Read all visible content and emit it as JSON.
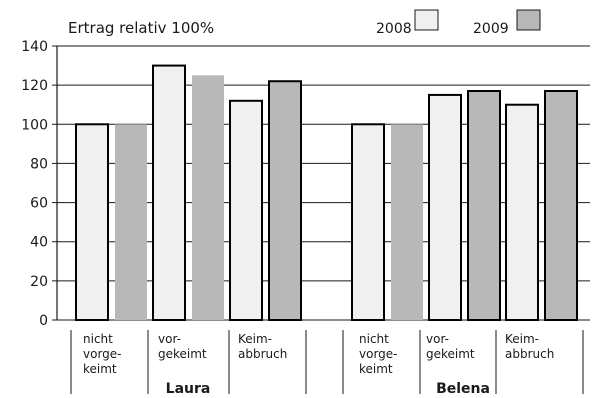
{
  "chart_data": {
    "type": "bar",
    "title": "Ertrag relativ 100%",
    "ylim": [
      0,
      140
    ],
    "yticks": [
      0,
      20,
      40,
      60,
      80,
      100,
      120,
      140
    ],
    "grid": true,
    "legend_position": "top-right",
    "groups": [
      {
        "name": "Laura",
        "categories": [
          [
            "nicht",
            "vorge-",
            "keimt"
          ],
          [
            "vor-",
            "gekeimt"
          ],
          [
            "Keim-",
            "abbruch"
          ]
        ]
      },
      {
        "name": "Belena",
        "categories": [
          [
            "nicht",
            "vorge-",
            "keimt"
          ],
          [
            "vor-",
            "gekeimt"
          ],
          [
            "Keim-",
            "abbruch"
          ]
        ]
      }
    ],
    "series": [
      {
        "name": "2008",
        "color": "#f0f0f0",
        "values": [
          100,
          130,
          112,
          100,
          115,
          110
        ]
      },
      {
        "name": "2009",
        "color": "#b8b8b8",
        "values": [
          100,
          125,
          122,
          100,
          117,
          117
        ]
      }
    ]
  }
}
